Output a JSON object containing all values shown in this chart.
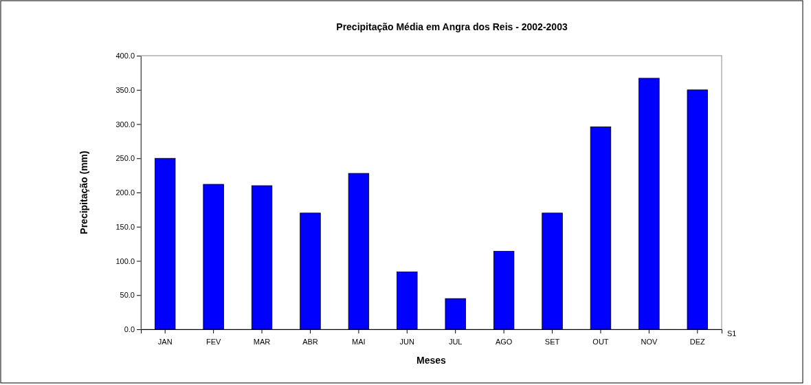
{
  "chart_data": {
    "type": "bar",
    "title": "Precipitação Média em Angra dos Reis - 2002-2003",
    "xlabel": "Meses",
    "ylabel": "Precipitação (mm)",
    "categories": [
      "JAN",
      "FEV",
      "MAR",
      "ABR",
      "MAI",
      "JUN",
      "JUL",
      "AGO",
      "SET",
      "OUT",
      "NOV",
      "DEZ"
    ],
    "series": [
      {
        "name": "S1",
        "color": "#0000ff",
        "values": [
          250,
          212,
          210,
          170,
          228,
          84,
          45,
          114,
          170,
          296,
          367,
          350
        ]
      }
    ],
    "ylim": [
      0,
      400
    ],
    "yticks": [
      {
        "value": 0,
        "label": "0.0"
      },
      {
        "value": 50,
        "label": "50.0"
      },
      {
        "value": 100,
        "label": "100.0"
      },
      {
        "value": 150,
        "label": "150.0"
      },
      {
        "value": 200,
        "label": "200.0"
      },
      {
        "value": 250,
        "label": "250.0"
      },
      {
        "value": 300,
        "label": "300.0"
      },
      {
        "value": 350,
        "label": "350.0"
      },
      {
        "value": 400,
        "label": "400.0"
      }
    ],
    "grid": false
  }
}
